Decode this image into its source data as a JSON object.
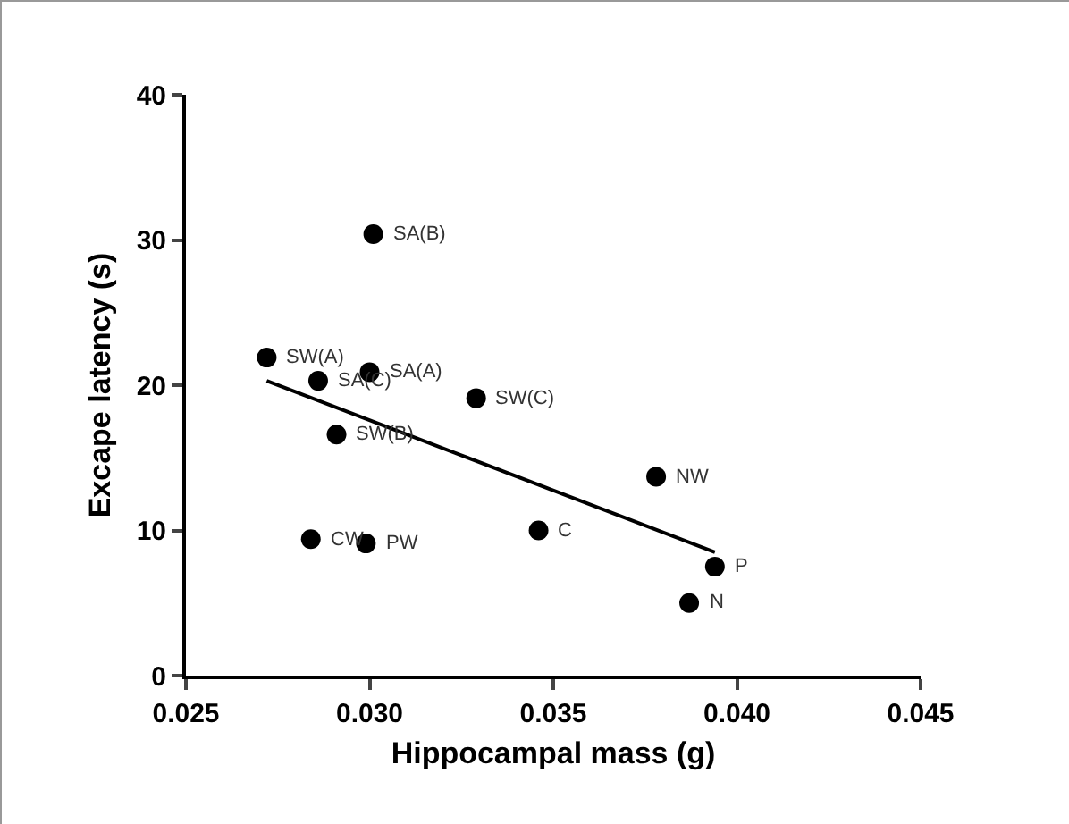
{
  "chart_data": {
    "type": "scatter",
    "xlabel": "Hippocampal mass (g)",
    "ylabel": "Excape latency (s)",
    "xlim": [
      0.025,
      0.045
    ],
    "xticks": [
      {
        "value": 0.025,
        "label": "0.025"
      },
      {
        "value": 0.03,
        "label": "0.030"
      },
      {
        "value": 0.035,
        "label": "0.035"
      },
      {
        "value": 0.04,
        "label": "0.040"
      },
      {
        "value": 0.045,
        "label": "0.045"
      }
    ],
    "ylim": [
      0,
      40
    ],
    "yticks": [
      0,
      10,
      20,
      30,
      40
    ],
    "grid": false,
    "marker": "circle",
    "series": [
      {
        "color": "#000000",
        "x": [
          0.0301,
          0.0272,
          0.0286,
          0.03,
          0.0329,
          0.0291,
          0.0284,
          0.0299,
          0.0346,
          0.0378,
          0.0394,
          0.0387
        ],
        "values": [
          30.4,
          21.9,
          20.3,
          20.9,
          19.1,
          16.6,
          9.4,
          9.1,
          10.0,
          13.7,
          7.5,
          5.0
        ]
      },
      {
        "type": "line",
        "color": "#000000",
        "marker": "none",
        "x": [
          0.0272,
          0.0394
        ],
        "values": [
          20.3,
          8.5
        ]
      }
    ],
    "annotations": [
      {
        "text": "SA(B)",
        "x": 0.0301,
        "y": 30.4
      },
      {
        "text": "SW(A)",
        "x": 0.0272,
        "y": 21.9
      },
      {
        "text": "SA(C)",
        "x": 0.0286,
        "y": 20.3
      },
      {
        "text": "SA(A)",
        "x": 0.03,
        "y": 20.9
      },
      {
        "text": "SW(C)",
        "x": 0.0329,
        "y": 19.1
      },
      {
        "text": "SW(B)",
        "x": 0.0291,
        "y": 16.6
      },
      {
        "text": "CW",
        "x": 0.0284,
        "y": 9.4
      },
      {
        "text": "PW",
        "x": 0.0299,
        "y": 9.1
      },
      {
        "text": "C",
        "x": 0.0346,
        "y": 10.0
      },
      {
        "text": "NW",
        "x": 0.0378,
        "y": 13.7
      },
      {
        "text": "P",
        "x": 0.0394,
        "y": 7.5
      },
      {
        "text": "N",
        "x": 0.0387,
        "y": 5.0
      }
    ]
  }
}
